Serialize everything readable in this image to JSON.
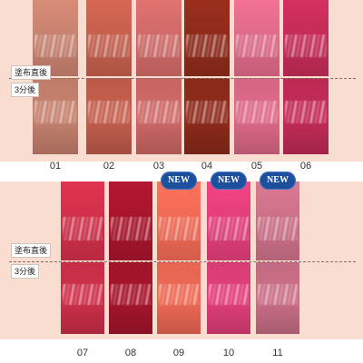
{
  "labels": {
    "immediately": "塗布直後",
    "after3": "3分後"
  },
  "new_badge": "NEW",
  "top_row": [
    {
      "num": "01",
      "color": "#c8826f"
    },
    {
      "num": "02",
      "color": "#c65f4d"
    },
    {
      "num": "03",
      "color": "#d06a68"
    },
    {
      "num": "04",
      "color": "#8f2b1b"
    },
    {
      "num": "05",
      "color": "#e06a8a"
    },
    {
      "num": "06",
      "color": "#c52c58"
    }
  ],
  "bottom_row": [
    {
      "num": "07",
      "color": "#d0304a",
      "new": false
    },
    {
      "num": "08",
      "color": "#a8152c",
      "new": false
    },
    {
      "num": "09",
      "color": "#f06a55",
      "new": true
    },
    {
      "num": "10",
      "color": "#e33f7a",
      "new": true
    },
    {
      "num": "11",
      "color": "#cc7088",
      "new": true
    }
  ]
}
